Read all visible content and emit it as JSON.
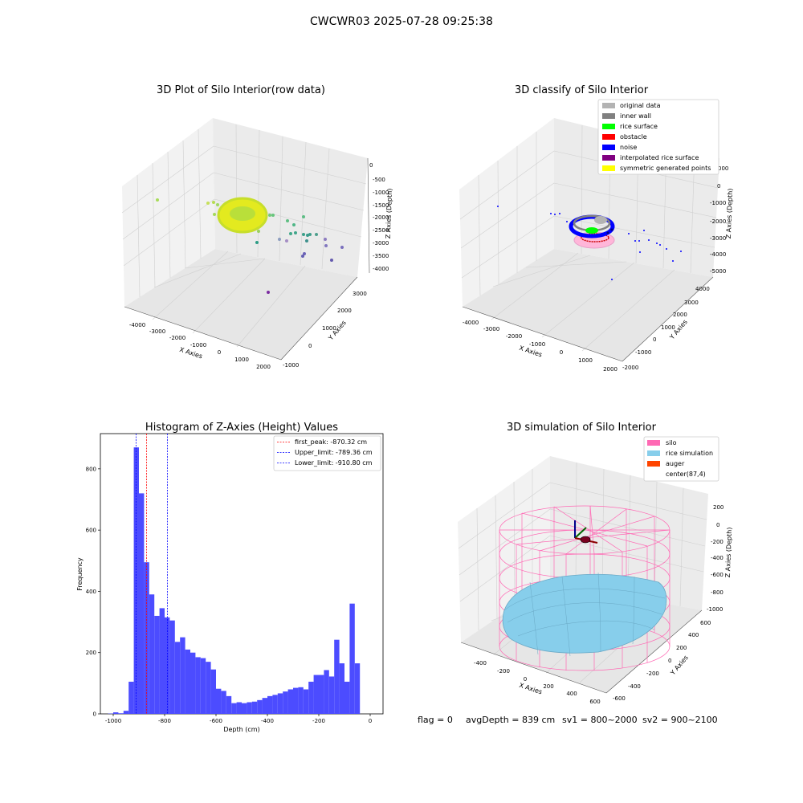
{
  "figure": {
    "suptitle": "CWCWR03 2025-07-28 09:25:38",
    "footer": {
      "flag": "flag = 0",
      "avg_depth": "avgDepth = 839 cm",
      "sv1": "sv1 = 800~2000",
      "sv2": "sv2 = 900~2100"
    }
  },
  "panels": {
    "raw": {
      "title": "3D Plot of Silo Interior(row data)",
      "xlabel": "X Axies",
      "ylabel": "Y Axies",
      "zlabel": "Z Axies (Depth)",
      "xticks": [
        "-4000",
        "-3000",
        "-2000",
        "-1000",
        "0",
        "1000",
        "2000"
      ],
      "yticks": [
        "-1000",
        "0",
        "1000",
        "2000",
        "3000"
      ],
      "zticks": [
        "0",
        "-500",
        "-1000",
        "-1500",
        "-2000",
        "-2500",
        "-3000",
        "-3500",
        "-4000"
      ]
    },
    "classify": {
      "title": "3D classify of Silo Interior",
      "xlabel": "X Axies",
      "ylabel": "Y Axies",
      "zlabel": "Z Axies (Depth)",
      "xticks": [
        "-4000",
        "-3000",
        "-2000",
        "-1000",
        "0",
        "1000",
        "2000"
      ],
      "yticks": [
        "-2000",
        "-1000",
        "0",
        "1000",
        "2000",
        "3000",
        "4000"
      ],
      "zticks": [
        "000",
        "0",
        "-1000",
        "-2000",
        "-3000",
        "-4000",
        "-5000"
      ],
      "legend": [
        {
          "label": "original data",
          "color": "#b3b3b3"
        },
        {
          "label": "inner wall",
          "color": "#808080"
        },
        {
          "label": "rice surface",
          "color": "#00ff00"
        },
        {
          "label": "obstacle",
          "color": "#ff0000"
        },
        {
          "label": "noise",
          "color": "#0000ff"
        },
        {
          "label": "interpolated rice surface",
          "color": "#800080"
        },
        {
          "label": "symmetric generated points",
          "color": "#ffff00"
        }
      ]
    },
    "simulation": {
      "title": "3D simulation of Silo Interior",
      "xlabel": "X Axies",
      "ylabel": "Y Axies",
      "zlabel": "Z Axies (Depth)",
      "xticks": [
        "-400",
        "-200",
        "0",
        "200",
        "400",
        "600"
      ],
      "yticks": [
        "-600",
        "-400",
        "-200",
        "0",
        "200",
        "400",
        "600"
      ],
      "zticks": [
        "200",
        "0",
        "-200",
        "-400",
        "-600",
        "-800",
        "-1000"
      ],
      "legend": [
        {
          "label": "silo",
          "color": "#ff69b4"
        },
        {
          "label": "rice simulation",
          "color": "#87ceeb"
        },
        {
          "label": "auger",
          "color": "#ff4500"
        },
        {
          "label": "center(87,4)",
          "color": "none"
        }
      ]
    }
  },
  "chart_data": {
    "type": "bar",
    "title": "Histogram of Z-Axies (Height) Values",
    "xlabel": "Depth (cm)",
    "ylabel": "Frequency",
    "xlim": [
      -1050,
      50
    ],
    "ylim": [
      0,
      915
    ],
    "xticks": [
      -1000,
      -800,
      -600,
      -400,
      -200,
      0
    ],
    "yticks": [
      0,
      200,
      400,
      600,
      800
    ],
    "bar_color": "#4c4cff",
    "bin_width": 20,
    "bin_start": -1020,
    "values": [
      1,
      5,
      2,
      10,
      105,
      870,
      720,
      495,
      390,
      320,
      345,
      315,
      305,
      235,
      250,
      210,
      200,
      185,
      182,
      170,
      145,
      82,
      75,
      58,
      35,
      38,
      35,
      38,
      40,
      45,
      52,
      58,
      62,
      67,
      73,
      80,
      85,
      87,
      80,
      105,
      127,
      127,
      143,
      122,
      242,
      165,
      105,
      360,
      165
    ],
    "lines": [
      {
        "label": "first_peak: -870.32 cm",
        "x": -870.32,
        "color": "#ff0000"
      },
      {
        "label": "Upper_limit: -789.36 cm",
        "x": -789.36,
        "color": "#0000ff"
      },
      {
        "label": "Lower_limit: -910.80 cm",
        "x": -910.8,
        "color": "#0000ff"
      }
    ],
    "legend_loc": "upper right",
    "grid": false
  }
}
